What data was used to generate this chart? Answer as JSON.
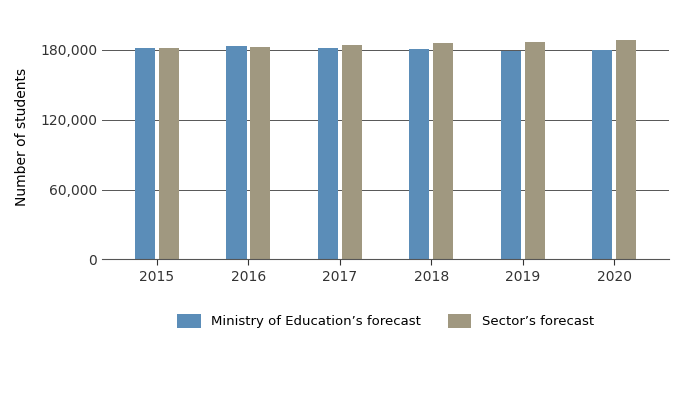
{
  "years": [
    "2015",
    "2016",
    "2017",
    "2018",
    "2019",
    "2020"
  ],
  "moe_forecast": [
    182000,
    183500,
    181500,
    180500,
    179000,
    179500
  ],
  "sector_forecast": [
    182000,
    182500,
    184000,
    186000,
    187000,
    188500
  ],
  "bar_color_moe": "#5B8DB8",
  "bar_color_sector": "#A09880",
  "ylabel": "Number of students",
  "ylim": [
    0,
    210000
  ],
  "yticks": [
    0,
    60000,
    120000,
    180000
  ],
  "legend_moe": "Ministry of Education’s forecast",
  "legend_sector": "Sector’s forecast",
  "background_color": "#ffffff",
  "grid_color": "#555555",
  "bar_width": 0.22
}
